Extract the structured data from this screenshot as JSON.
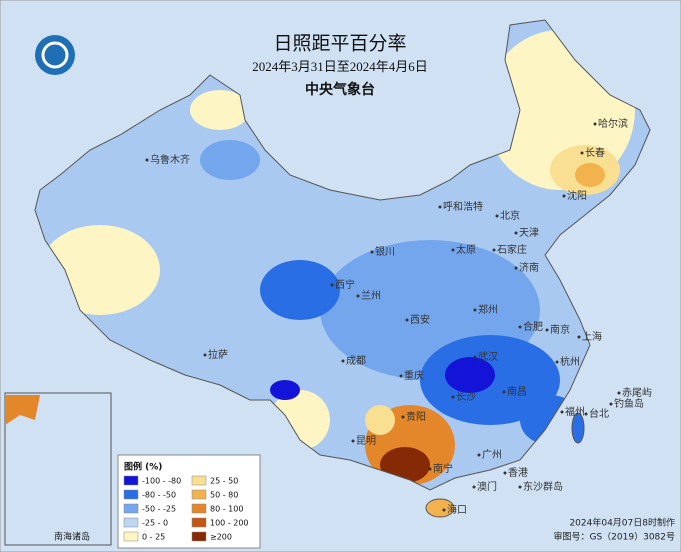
{
  "header": {
    "title": "日照距平百分率",
    "date_range": "2024年3月31日至2024年4月6日",
    "organization": "中央气象台"
  },
  "cities": [
    "乌鲁木齐",
    "哈尔滨",
    "长春",
    "沈阳",
    "呼和浩特",
    "北京",
    "天津",
    "石家庄",
    "太原",
    "济南",
    "银川",
    "西宁",
    "兰州",
    "郑州",
    "西安",
    "合肥",
    "南京",
    "上海",
    "拉萨",
    "成都",
    "武汉",
    "重庆",
    "杭州",
    "长沙",
    "南昌",
    "贵阳",
    "福州",
    "台北",
    "昆明",
    "南宁",
    "广州",
    "香港",
    "澳门",
    "海口",
    "赤尾屿",
    "钓鱼岛",
    "东沙群岛"
  ],
  "inset": {
    "label": "南海诸岛"
  },
  "legend": {
    "title": "图例 (%)",
    "items": [
      {
        "label": "-100 - -80",
        "color": "#1414d8"
      },
      {
        "label": "-80 - -50",
        "color": "#2a6ee6"
      },
      {
        "label": "-50 - -25",
        "color": "#74a6ee"
      },
      {
        "label": "-25 - 0",
        "color": "#bcd6f4"
      },
      {
        "label": "0 - 25",
        "color": "#fdf6c4"
      },
      {
        "label": "25 - 50",
        "color": "#f9df92"
      },
      {
        "label": "50 - 80",
        "color": "#f2b24e"
      },
      {
        "label": "80 - 100",
        "color": "#e4862a"
      },
      {
        "label": "100 - 200",
        "color": "#c45612"
      },
      {
        "label": "≥200",
        "color": "#862a06"
      }
    ]
  },
  "footer": {
    "made": "2024年04月07日8时制作",
    "approval": "审图号：GS（2019）3082号"
  }
}
